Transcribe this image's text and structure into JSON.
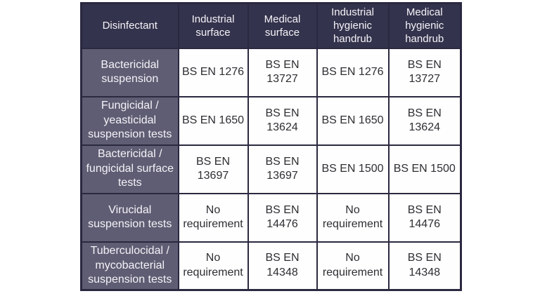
{
  "colors": {
    "header-bg": "#34334d",
    "row-label-bg": "#5f5d73",
    "cell-bg": "#fefefe",
    "border": "#2a2940",
    "header-text": "#f4f3f8",
    "cell-text": "#2e2e33"
  },
  "table": {
    "header": [
      "Disinfectant",
      "Industrial\nsurface",
      "Medical\nsurface",
      "Industrial\nhygienic\nhandrub",
      "Medical\nhygienic\nhandrub"
    ],
    "rows": [
      {
        "label": "Bactericidal\nsuspension",
        "cells": [
          "BS EN 1276",
          "BS EN\n13727",
          "BS EN 1276",
          "BS EN\n13727"
        ]
      },
      {
        "label": "Fungicidal /\nyeasticidal\nsuspension tests",
        "cells": [
          "BS EN 1650",
          "BS EN\n13624",
          "BS EN 1650",
          "BS EN\n13624"
        ]
      },
      {
        "label": "Bactericidal /\nfungicidal surface\ntests",
        "cells": [
          "BS EN\n13697",
          "BS EN\n13697",
          "BS EN 1500",
          "BS EN 1500"
        ]
      },
      {
        "label": "Virucidal\nsuspension tests",
        "cells": [
          "No\nrequirement",
          "BS EN\n14476",
          "No\nrequirement",
          "BS EN\n14476"
        ]
      },
      {
        "label": "Tuberculocidal /\nmycobacterial\nsuspension tests",
        "cells": [
          "No\nrequirement",
          "BS EN\n14348",
          "No\nrequirement",
          "BS EN\n14348"
        ]
      }
    ]
  }
}
